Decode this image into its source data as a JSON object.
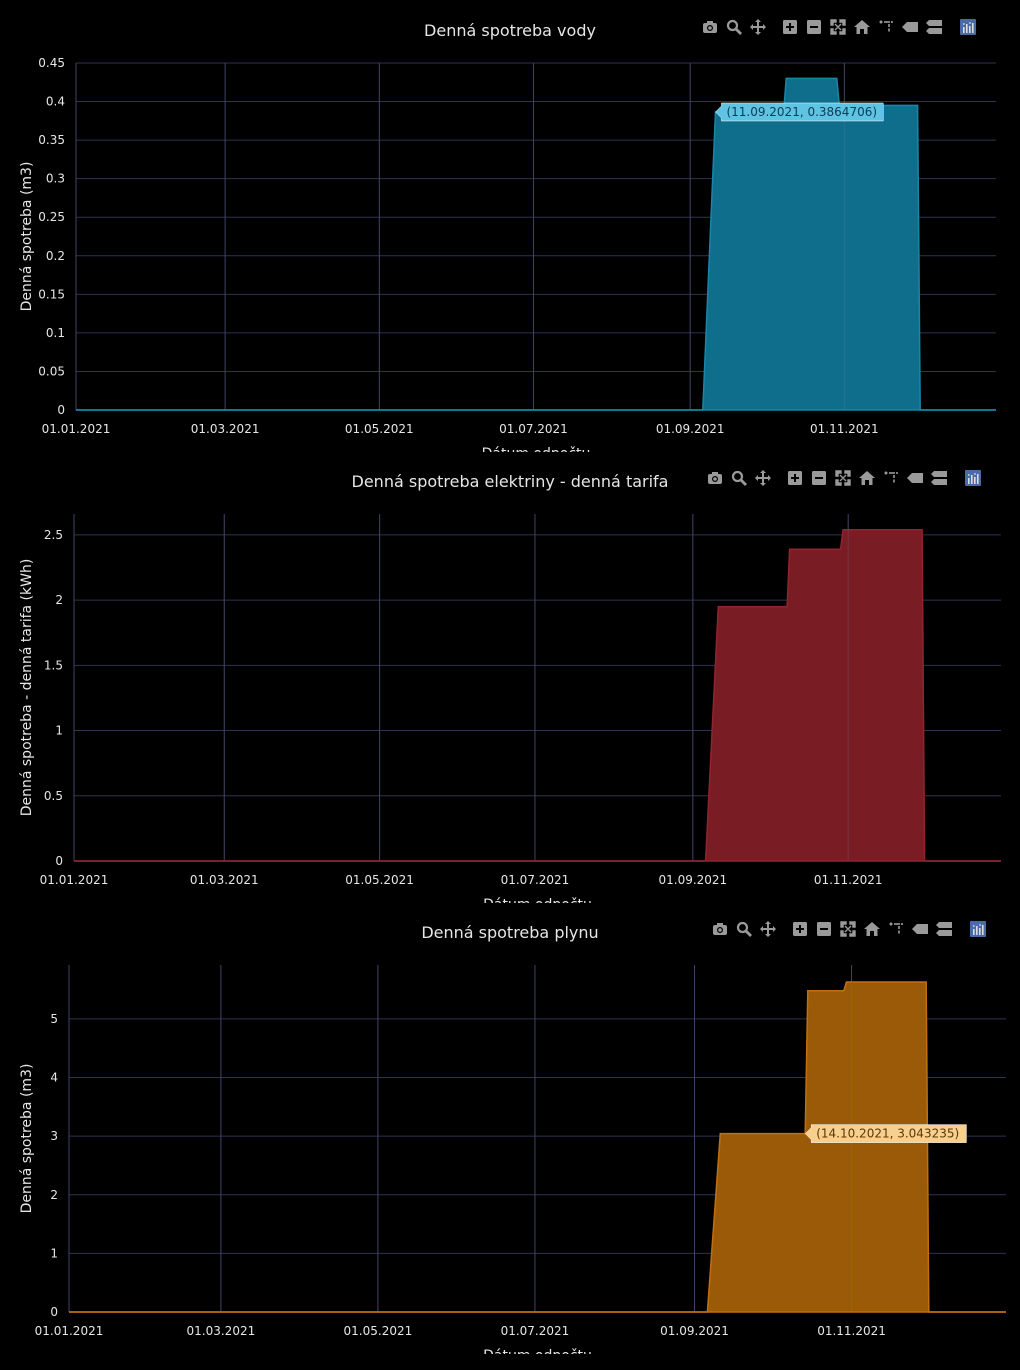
{
  "chart_data": [
    {
      "type": "area",
      "title": "Denná spotreba vody",
      "xlabel": "Dátum odpočtu",
      "ylabel": "Denná spotreba (m3)",
      "color": "#0f6e8c",
      "line_color": "#1a86a6",
      "x_ticks": [
        "01.01.2021",
        "01.03.2021",
        "01.05.2021",
        "01.07.2021",
        "01.09.2021",
        "01.11.2021"
      ],
      "y_ticks": [
        "0",
        "0.05",
        "0.1",
        "0.15",
        "0.2",
        "0.25",
        "0.3",
        "0.35",
        "0.4",
        "0.45"
      ],
      "ylim": [
        0,
        0.45
      ],
      "xlim": [
        "2021-01-01",
        "2021-12-31"
      ],
      "series": [
        {
          "x": [
            "2021-01-01",
            "2021-09-06",
            "2021-09-11",
            "2021-10-08",
            "2021-10-09",
            "2021-10-29",
            "2021-10-30",
            "2021-11-30",
            "2021-12-01",
            "2021-12-31"
          ],
          "y": [
            0,
            0,
            0.3864706,
            0.3864706,
            0.43,
            0.43,
            0.395,
            0.395,
            0,
            0
          ]
        }
      ],
      "tooltip": {
        "text": "(11.09.2021, 0.3864706)",
        "x": "2021-09-11",
        "y": 0.3864706,
        "bg": "#5fc3e4",
        "fg": "#0b3d52"
      },
      "grid": true
    },
    {
      "type": "area",
      "title": "Denná spotreba elektriny - denná tarifa",
      "xlabel": "Dátum odpočtu",
      "ylabel": "Denná spotreba - denná tarifa (kWh)",
      "color": "#7a1c24",
      "line_color": "#8f2530",
      "x_ticks": [
        "01.01.2021",
        "01.03.2021",
        "01.05.2021",
        "01.07.2021",
        "01.09.2021",
        "01.11.2021"
      ],
      "y_ticks": [
        "0",
        "0.5",
        "1",
        "1.5",
        "2",
        "2.5"
      ],
      "ylim": [
        0,
        2.66
      ],
      "xlim": [
        "2021-01-01",
        "2021-12-31"
      ],
      "series": [
        {
          "x": [
            "2021-01-01",
            "2021-09-06",
            "2021-09-11",
            "2021-10-08",
            "2021-10-09",
            "2021-10-29",
            "2021-10-30",
            "2021-11-30",
            "2021-12-01",
            "2021-12-31"
          ],
          "y": [
            0,
            0,
            1.95,
            1.95,
            2.39,
            2.39,
            2.54,
            2.54,
            0,
            0
          ]
        }
      ],
      "grid": true
    },
    {
      "type": "area",
      "title": "Denná spotreba plynu",
      "xlabel": "Dátum odpočtu",
      "ylabel": "Denná spotreba (m3)",
      "color": "#9a5a08",
      "line_color": "#c07010",
      "x_ticks": [
        "01.01.2021",
        "01.03.2021",
        "01.05.2021",
        "01.07.2021",
        "01.09.2021",
        "01.11.2021"
      ],
      "y_ticks": [
        "0",
        "1",
        "2",
        "3",
        "4",
        "5"
      ],
      "ylim": [
        0,
        5.92
      ],
      "xlim": [
        "2021-01-01",
        "2021-12-31"
      ],
      "series": [
        {
          "x": [
            "2021-01-01",
            "2021-09-06",
            "2021-09-11",
            "2021-10-14",
            "2021-10-15",
            "2021-10-29",
            "2021-10-30",
            "2021-11-30",
            "2021-12-01",
            "2021-12-31"
          ],
          "y": [
            0,
            0,
            3.043235,
            3.043235,
            5.48,
            5.48,
            5.63,
            5.63,
            0,
            0
          ]
        }
      ],
      "tooltip": {
        "text": "(14.10.2021, 3.043235)",
        "x": "2021-10-14",
        "y": 3.043235,
        "bg": "#f7cf8f",
        "fg": "#5a3a05"
      },
      "grid": true
    }
  ],
  "modebar": {
    "buttons": [
      "camera-icon",
      "zoom-icon",
      "pan-icon",
      "zoom-in-icon",
      "zoom-out-icon",
      "autoscale-icon",
      "home-icon",
      "spike-lines-icon",
      "hover-closest-icon",
      "hover-compare-icon",
      "plotly-logo-icon"
    ],
    "color": "#9a9a9a",
    "logo_color": "#4a6aa8"
  }
}
